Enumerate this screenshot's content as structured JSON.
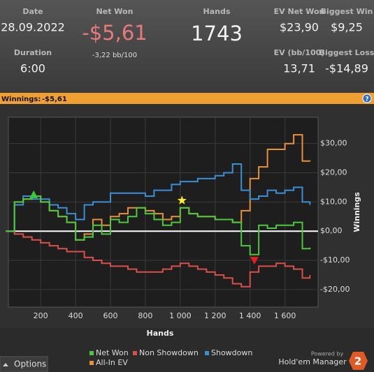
{
  "header": {
    "date": {
      "label": "Date",
      "value": "28.09.2022"
    },
    "net_won": {
      "label": "Net Won",
      "value": "-$5,61",
      "sub": "-3,22 bb/100"
    },
    "hands": {
      "label": "Hands",
      "value": "1743"
    },
    "ev_net_won": {
      "label": "EV Net Won",
      "value": "$23,90"
    },
    "biggest_win": {
      "label": "Biggest Win",
      "value": "$9,25"
    },
    "duration": {
      "label": "Duration",
      "value": "6:00"
    },
    "ev_bb": {
      "label": "EV (bb/100)",
      "value": "13,71"
    },
    "biggest_loss": {
      "label": "Biggest Loss",
      "value": "-$14,89"
    }
  },
  "banner": {
    "label": "Winnings:",
    "value": "-$5,61",
    "help": "?"
  },
  "chart_data": {
    "type": "line",
    "x_label": "Hands",
    "y_label": "Winnings",
    "x": [
      0,
      50,
      100,
      150,
      200,
      250,
      300,
      350,
      400,
      450,
      500,
      550,
      600,
      650,
      700,
      750,
      800,
      850,
      900,
      950,
      1000,
      1050,
      1100,
      1150,
      1200,
      1250,
      1300,
      1350,
      1400,
      1450,
      1500,
      1550,
      1600,
      1650,
      1700,
      1743
    ],
    "series": [
      {
        "name": "Net Won",
        "color": "#4cc83c",
        "values": [
          0,
          10,
          11,
          12,
          10,
          7,
          5,
          3,
          -3,
          -2,
          2,
          -1,
          4,
          3,
          5,
          8,
          6,
          4,
          2,
          3,
          8,
          6,
          5,
          5,
          4,
          4,
          3,
          -5,
          -8,
          2,
          1,
          2,
          2,
          3,
          -6,
          -5.61
        ]
      },
      {
        "name": "Non Showdown",
        "color": "#d9504a",
        "values": [
          0,
          -1,
          -2,
          -3,
          -4,
          -5,
          -6,
          -7,
          -7,
          -9,
          -10,
          -11,
          -12,
          -12,
          -13,
          -14,
          -14,
          -14,
          -13,
          -12,
          -11,
          -12,
          -13,
          -14,
          -15,
          -16,
          -18,
          -19,
          -14,
          -12,
          -12,
          -11,
          -12,
          -13,
          -16,
          -15
        ]
      },
      {
        "name": "Showdown",
        "color": "#3a8fd6",
        "values": [
          0,
          9,
          12,
          11,
          11,
          9,
          8,
          6,
          4,
          9,
          10,
          10,
          13,
          13,
          13,
          13,
          12,
          14,
          14,
          16,
          17,
          17,
          18,
          18,
          19,
          20,
          23,
          14,
          11,
          12,
          14,
          13,
          14,
          15,
          10,
          9
        ]
      },
      {
        "name": "All-In EV",
        "color": "#e8903a",
        "values": [
          0,
          10,
          11,
          12,
          10,
          7,
          5,
          3,
          -3,
          -1,
          4,
          2,
          5,
          6,
          8,
          8,
          7,
          6,
          4,
          5,
          8,
          6,
          5,
          5,
          4,
          4,
          3,
          7,
          18,
          22,
          28,
          28,
          30,
          33,
          24,
          23.9
        ]
      }
    ],
    "markers": [
      {
        "x": 160,
        "y": 12.5,
        "shape": "triangle-up",
        "color": "#3cc83c"
      },
      {
        "x": 1010,
        "y": 10.5,
        "shape": "star",
        "color": "#ffee22"
      },
      {
        "x": 1425,
        "y": -10,
        "shape": "triangle-down",
        "color": "#e02020"
      }
    ],
    "xlim": [
      15,
      1790
    ],
    "xticks": [
      200,
      400,
      600,
      800,
      {
        "value": 1000,
        "label": "1 000"
      },
      {
        "value": 1200,
        "label": "1 200"
      },
      {
        "value": 1400,
        "label": "1 400"
      },
      {
        "value": 1600,
        "label": "1 600"
      }
    ],
    "ylim": [
      -26,
      39
    ],
    "yticks": [
      {
        "value": 30,
        "label": "$30,00"
      },
      {
        "value": 20,
        "label": "$20,00"
      },
      {
        "value": 10,
        "label": "$10,00"
      },
      {
        "value": 0,
        "label": "$0,00"
      },
      {
        "value": -10,
        "label": "-$10,00"
      },
      {
        "value": -20,
        "label": "-$20,00"
      }
    ],
    "grid": true
  },
  "footer": {
    "options": "Options",
    "powered": "Powered by",
    "brand": "Hold'em Manager",
    "logo": "2"
  }
}
